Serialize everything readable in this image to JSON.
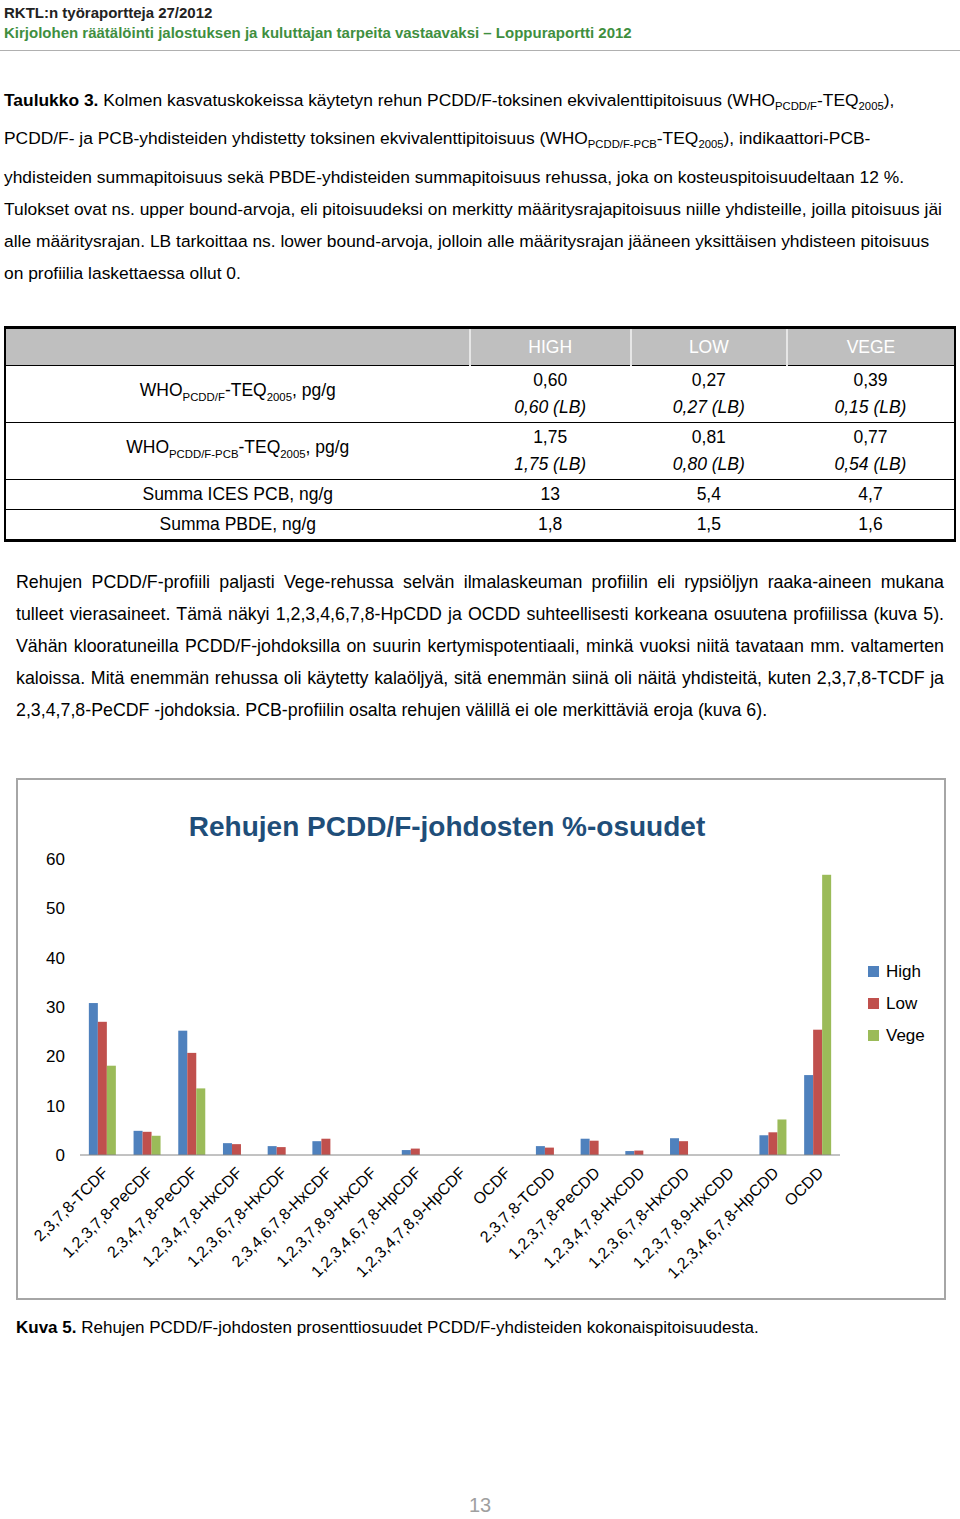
{
  "header": {
    "series_title": "RKTL:n työraportteja 27/2012",
    "report_title": "Kirjolohen räätälöinti jalostuksen ja kuluttajan tarpeita vastaavaksi – Loppuraportti 2012"
  },
  "caption": [
    {
      "text": "Taulukko 3.",
      "bold": true
    },
    {
      "text": " Kolmen kasvatuskokeissa käytetyn rehun PCDD/F-toksinen ekvivalenttipitoisuus (WHO"
    },
    {
      "text": "PCDD/F",
      "sub": true
    },
    {
      "text": "-TEQ"
    },
    {
      "text": "2005",
      "sub": true
    },
    {
      "text": "), PCDD/F- ja PCB-yhdisteiden yhdistetty toksinen ekvivalenttipitoisuus (WHO"
    },
    {
      "text": "PCDD/F-PCB",
      "sub": true
    },
    {
      "text": "-TEQ"
    },
    {
      "text": "2005",
      "sub": true
    },
    {
      "text": "), indikaattori-PCB-yhdisteiden summapitoisuus sekä PBDE-yhdisteiden summapitoisuus rehussa, joka on kosteuspitoisuudeltaan 12 %. Tulokset ovat ns. upper bound-arvoja, eli pitoisuudeksi on merkitty määritysrajapitoisuus niille yhdisteille, joilla pitoisuus jäi alle määritysrajan. LB tarkoittaa ns. lower bound-arvoja, jolloin alle määritysrajan jääneen yksittäisen yhdisteen pitoisuus on profiilia laskettaessa ollut 0."
    }
  ],
  "table": {
    "header": [
      "HIGH",
      "LOW",
      "VEGE"
    ],
    "rows": [
      {
        "label": [
          {
            "text": "WHO"
          },
          {
            "text": "PCDD/F",
            "sub": true
          },
          {
            "text": "-TEQ"
          },
          {
            "text": "2005",
            "sub": true
          },
          {
            "text": ", pg/g"
          }
        ],
        "cells": [
          [
            {
              "text": "0,60"
            },
            {
              "text": "0,60 (LB)",
              "italic": true
            }
          ],
          [
            {
              "text": "0,27"
            },
            {
              "text": "0,27 (LB)",
              "italic": true
            }
          ],
          [
            {
              "text": "0,39"
            },
            {
              "text": "0,15 (LB)",
              "italic": true
            }
          ]
        ]
      },
      {
        "label": [
          {
            "text": "WHO"
          },
          {
            "text": "PCDD/F-PCB",
            "sub": true
          },
          {
            "text": "-TEQ"
          },
          {
            "text": "2005",
            "sub": true
          },
          {
            "text": ", pg/g"
          }
        ],
        "cells": [
          [
            {
              "text": "1,75"
            },
            {
              "text": "1,75 (LB)",
              "italic": true
            }
          ],
          [
            {
              "text": "0,81"
            },
            {
              "text": "0,80 (LB)",
              "italic": true
            }
          ],
          [
            {
              "text": "0,77"
            },
            {
              "text": "0,54 (LB)",
              "italic": true
            }
          ]
        ]
      },
      {
        "label": [
          {
            "text": "Summa ICES PCB, ng/g"
          }
        ],
        "cells": [
          [
            {
              "text": "13"
            }
          ],
          [
            {
              "text": "5,4"
            }
          ],
          [
            {
              "text": "4,7"
            }
          ]
        ]
      },
      {
        "label": [
          {
            "text": "Summa PBDE, ng/g"
          }
        ],
        "cells": [
          [
            {
              "text": "1,8"
            }
          ],
          [
            {
              "text": "1,5"
            }
          ],
          [
            {
              "text": "1,6"
            }
          ]
        ]
      }
    ]
  },
  "paragraph": "Rehujen PCDD/F-profiili paljasti Vege-rehussa selvän ilmalaskeuman profiilin eli rypsiöljyn raaka-aineen mukana tulleet vierasaineet. Tämä näkyi 1,2,3,4,6,7,8-HpCDD ja OCDD suhteellisesti korkeana osuutena profiilissa (kuva 5). Vähän klooratuneilla PCDD/F-johdoksilla on suurin kertymispotentiaali, minkä vuoksi niitä tavataan mm. valtamerten kaloissa. Mitä enemmän rehussa oli käytetty kalaöljyä, sitä enemmän siinä oli näitä yhdisteitä, kuten 2,3,7,8-TCDF ja 2,3,4,7,8-PeCDF -johdoksia. PCB-profiilin osalta rehujen välillä ei ole merkittäviä eroja (kuva 6).",
  "chart_data": {
    "type": "bar",
    "title": "Rehujen PCDD/F-johdosten %-osuudet",
    "categories": [
      "2,3,7,8-TCDF",
      "1,2,3,7,8-PeCDF",
      "2,3,4,7,8-PeCDF",
      "1,2,3,4,7,8-HxCDF",
      "1,2,3,6,7,8-HxCDF",
      "2,3,4,6,7,8-HxCDF",
      "1,2,3,7,8,9-HxCDF",
      "1,2,3,4,6,7,8-HpCDF",
      "1,2,3,4,7,8,9-HpCDF",
      "OCDF",
      "2,3,7,8-TCDD",
      "1,2,3,7,8-PeCDD",
      "1,2,3,4,7,8-HxCDD",
      "1,2,3,6,7,8-HxCDD",
      "1,2,3,7,8,9-HxCDD",
      "1,2,3,4,6,7,8-HpCDD",
      "OCDD"
    ],
    "series": [
      {
        "name": "High",
        "color": "#4f81bd",
        "values": [
          30.8,
          4.9,
          25.2,
          2.4,
          1.8,
          2.8,
          0,
          1.0,
          0,
          0,
          1.8,
          3.3,
          0.8,
          3.4,
          0,
          4.0,
          16.2
        ]
      },
      {
        "name": "Low",
        "color": "#c0504d",
        "values": [
          27.0,
          4.7,
          20.7,
          2.2,
          1.6,
          3.3,
          0,
          1.3,
          0,
          0,
          1.5,
          2.9,
          0.9,
          2.8,
          0,
          4.6,
          25.4
        ]
      },
      {
        "name": "Vege",
        "color": "#9bbb59",
        "values": [
          18.1,
          3.9,
          13.5,
          0,
          0,
          0,
          0,
          0,
          0,
          0,
          0,
          0,
          0,
          0,
          0,
          7.2,
          56.8
        ]
      }
    ],
    "ylim": [
      0,
      60
    ],
    "yticks": [
      0,
      10,
      20,
      30,
      40,
      50,
      60
    ],
    "grid": false,
    "legend": "right"
  },
  "figure_caption": [
    {
      "text": "Kuva 5.",
      "bold": true
    },
    {
      "text": " Rehujen PCDD/F-johdosten prosenttiosuudet PCDD/F-yhdisteiden kokonaispitoisuudesta."
    }
  ],
  "page_number": "13"
}
